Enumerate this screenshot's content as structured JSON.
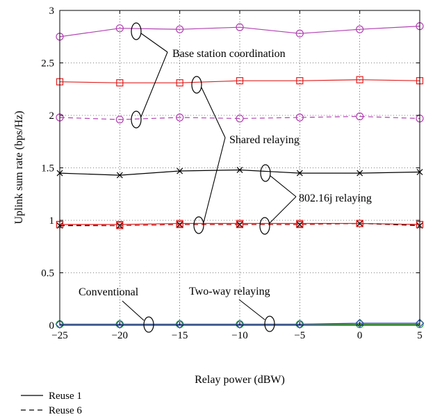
{
  "chart_data": {
    "type": "line",
    "xlabel": "Relay power (dBW)",
    "ylabel": "Uplink sum rate (bps/Hz)",
    "xlim": [
      -25,
      5
    ],
    "ylim": [
      0,
      3
    ],
    "x_ticks": [
      -25,
      -20,
      -15,
      -10,
      -5,
      0,
      5
    ],
    "x_tick_labels": [
      "−25",
      "−20",
      "−15",
      "−10",
      "−5",
      "0",
      "5"
    ],
    "y_ticks": [
      0,
      0.5,
      1,
      1.5,
      2,
      2.5,
      3
    ],
    "y_tick_labels": [
      "0",
      "0.5",
      "1",
      "1.5",
      "2",
      "2.5",
      "3"
    ],
    "grid": true,
    "x": [
      -25,
      -20,
      -15,
      -10,
      -5,
      0,
      5
    ],
    "series": [
      {
        "color": "#b040b0",
        "dash": "solid",
        "marker": "circle",
        "values": [
          2.75,
          2.83,
          2.82,
          2.84,
          2.78,
          2.82,
          2.85
        ]
      },
      {
        "color": "#e02020",
        "dash": "solid",
        "marker": "square",
        "values": [
          2.32,
          2.31,
          2.31,
          2.33,
          2.33,
          2.34,
          2.33
        ]
      },
      {
        "color": "#b040b0",
        "dash": "dashed",
        "marker": "circle",
        "values": [
          1.98,
          1.96,
          1.98,
          1.97,
          1.98,
          1.99,
          1.97
        ]
      },
      {
        "color": "#000000",
        "dash": "solid",
        "marker": "x",
        "values": [
          1.45,
          1.43,
          1.47,
          1.48,
          1.45,
          1.45,
          1.46
        ]
      },
      {
        "color": "#e02020",
        "dash": "solid",
        "marker": "square",
        "values": [
          0.96,
          0.96,
          0.97,
          0.97,
          0.97,
          0.97,
          0.96
        ]
      },
      {
        "color": "#000000",
        "dash": "dashed",
        "marker": "x",
        "values": [
          0.95,
          0.95,
          0.96,
          0.96,
          0.96,
          0.97,
          0.95
        ]
      },
      {
        "color": "#e02020",
        "dash": "dashed",
        "marker": "square",
        "values": [
          0.96,
          0.95,
          0.96,
          0.96,
          0.96,
          0.97,
          0.96
        ]
      },
      {
        "color": "#20a020",
        "dash": "solid",
        "marker": "circle",
        "values": [
          0.01,
          0.01,
          0.01,
          0.01,
          0.01,
          0.01,
          0.01
        ]
      },
      {
        "color": "#3050b0",
        "dash": "solid",
        "marker": "diamond",
        "values": [
          0.01,
          0.01,
          0.01,
          0.01,
          0.01,
          0.02,
          0.02
        ]
      }
    ],
    "annotations": [
      {
        "text": "Base station coordination"
      },
      {
        "text": "Shared relaying"
      },
      {
        "text": "802.16j relaying"
      },
      {
        "text": "Conventional"
      },
      {
        "text": "Two-way relaying"
      }
    ],
    "legend": [
      {
        "label": "Reuse 1",
        "dash": "solid"
      },
      {
        "label": "Reuse 6",
        "dash": "dashed"
      }
    ],
    "legend_position": "bottom-left"
  }
}
